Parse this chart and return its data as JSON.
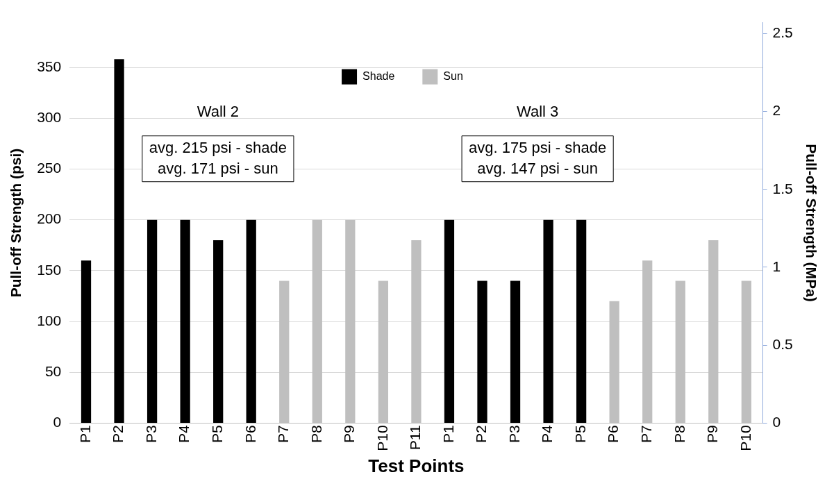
{
  "chart_data": {
    "type": "bar",
    "xlabel": "Test Points",
    "ylabel": "Pull-off Strength (psi)",
    "y2label": "Pull-off Strength (MPa)",
    "categories": [
      "P1",
      "P2",
      "P3",
      "P4",
      "P5",
      "P6",
      "P7",
      "P8",
      "P9",
      "P10",
      "P11",
      "P1",
      "P2",
      "P3",
      "P4",
      "P5",
      "P6",
      "P7",
      "P8",
      "P9",
      "P10"
    ],
    "series": [
      {
        "name": "Shade",
        "color": "#000000",
        "values": [
          160,
          358,
          200,
          200,
          180,
          200,
          null,
          null,
          null,
          null,
          null,
          200,
          140,
          140,
          200,
          200,
          null,
          null,
          null,
          null,
          null
        ]
      },
      {
        "name": "Sun",
        "color": "#bfbfbf",
        "values": [
          null,
          null,
          null,
          null,
          null,
          null,
          140,
          200,
          200,
          140,
          180,
          null,
          null,
          null,
          null,
          null,
          120,
          160,
          140,
          180,
          140
        ]
      }
    ],
    "ylim": [
      0,
      394
    ],
    "yticks": [
      0,
      50,
      100,
      150,
      200,
      250,
      300,
      350
    ],
    "y2lim": [
      0,
      2.57
    ],
    "y2ticks": [
      0,
      0.5,
      1,
      1.5,
      2,
      2.5
    ],
    "grid": "y",
    "legend": "top",
    "annotations": [
      "Wall 2",
      "avg. 215 psi - shade\navg. 171 psi - sun",
      "Wall 3",
      "avg. 175 psi - shade\navg. 147 psi - sun"
    ]
  }
}
